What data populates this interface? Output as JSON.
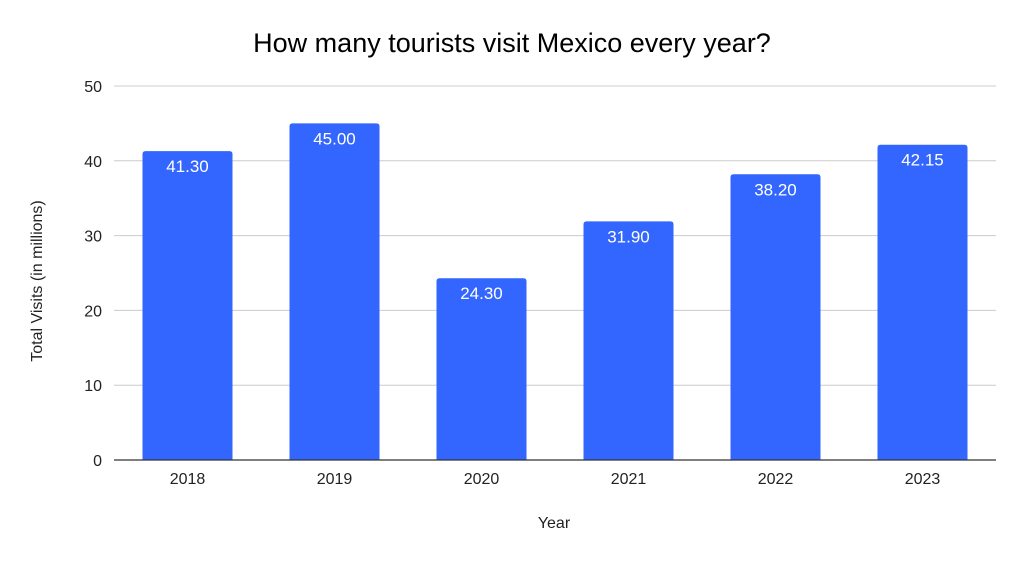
{
  "chart_data": {
    "type": "bar",
    "title": "How many tourists visit Mexico every year?",
    "xlabel": "Year",
    "ylabel": "Total Visits (in millions)",
    "categories": [
      "2018",
      "2019",
      "2020",
      "2021",
      "2022",
      "2023"
    ],
    "values": [
      41.3,
      45.0,
      24.3,
      31.9,
      38.2,
      42.15
    ],
    "data_labels": [
      "41.30",
      "45.00",
      "24.30",
      "31.90",
      "38.20",
      "42.15"
    ],
    "ylim": [
      0,
      50
    ],
    "yticks": [
      "0",
      "10",
      "20",
      "30",
      "40",
      "50"
    ],
    "grid": true,
    "legend": "none",
    "bar_color": "#3366ff"
  }
}
